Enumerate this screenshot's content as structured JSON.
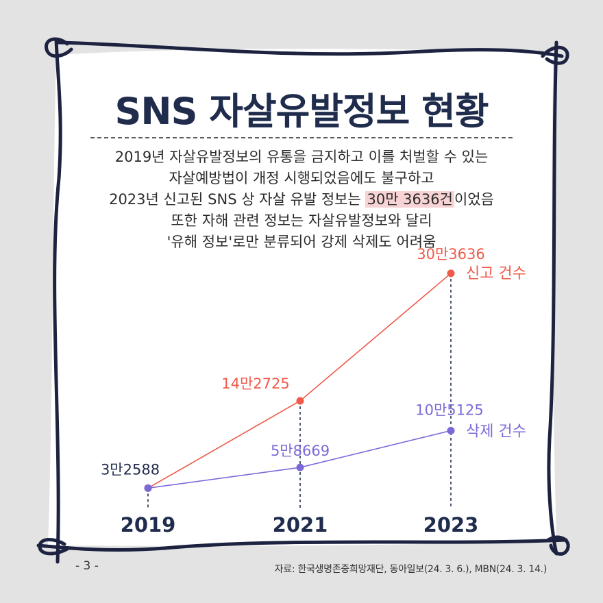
{
  "title": "SNS 자살유발정보 현황",
  "description": {
    "line1": "2019년 자살유발정보의 유통을 금지하고 이를 처벌할 수 있는",
    "line2": "자살예방법이 개정 시행되었음에도 불구하고",
    "line3_before": "2023년 신고된 SNS 상 자살 유발 정보는 ",
    "line3_highlight": "30만 3636건",
    "line3_after": "이었음",
    "line4": "또한 자해 관련 정보는 자살유발정보와 달리",
    "line5": "'유해 정보'로만 분류되어 강제 삭제도 어려움"
  },
  "colors": {
    "navy": "#1f2c4c",
    "report": "#ef5a4a",
    "delete": "#7a6ad8",
    "highlight": "#f8d3d3",
    "background": "#e3e3e3"
  },
  "chart_data": {
    "type": "line",
    "x": [
      "2019",
      "2021",
      "2023"
    ],
    "series": [
      {
        "name": "신고 건수",
        "values": [
          32588,
          142725,
          303636
        ],
        "labels": [
          "3만2588",
          "14만2725",
          "30만3636"
        ],
        "color": "#ef5a4a"
      },
      {
        "name": "삭제 건수",
        "values": [
          32588,
          58669,
          105125
        ],
        "labels": [
          "",
          "5만8669",
          "10만5125"
        ],
        "color": "#7a6ad8"
      }
    ],
    "ylim": [
      0,
      320000
    ],
    "grid": false,
    "legend": "right, next to line ends",
    "title": "",
    "xlabel": "",
    "ylabel": ""
  },
  "footer": {
    "page": "- 3 -",
    "source": "자료: 한국생명존중희망재단, 동아일보(24. 3. 6.), MBN(24. 3. 14.)"
  }
}
